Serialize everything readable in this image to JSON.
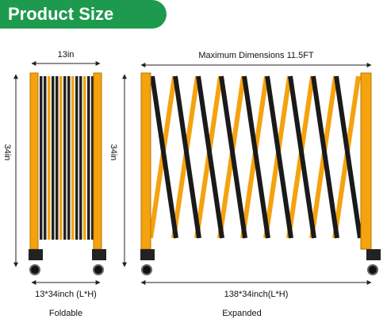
{
  "header": {
    "title": "Product Size"
  },
  "foldable": {
    "width_label": "13in",
    "height_label": "34in",
    "size_label": "13*34inch  (L*H)",
    "caption": "Foldable"
  },
  "expanded": {
    "width_label": "Maximum Dimensions 11.5FT",
    "height_label": "34in",
    "size_label": "138*34inch(L*H)",
    "caption": "Expanded"
  }
}
